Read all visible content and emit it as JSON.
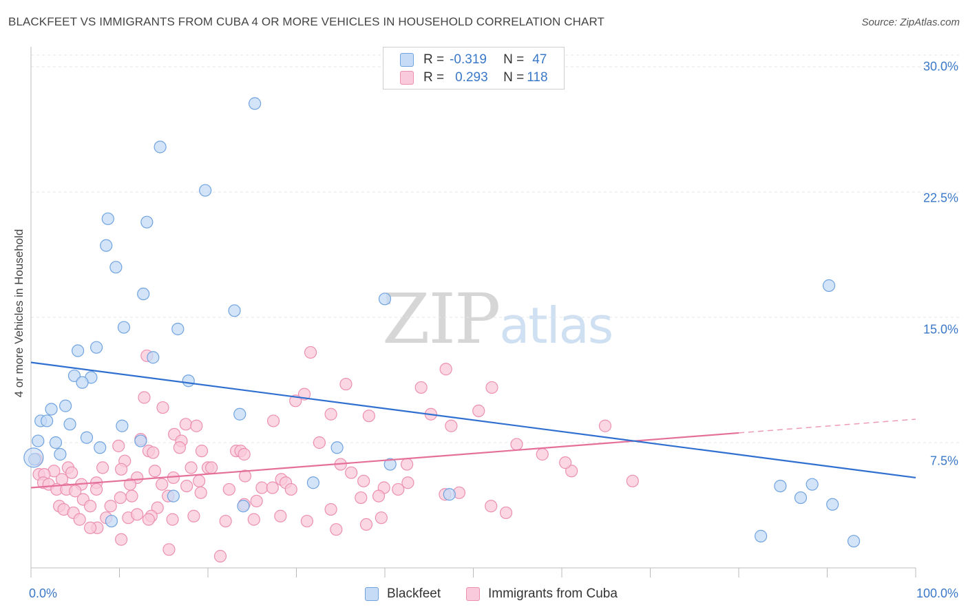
{
  "title": "BLACKFEET VS IMMIGRANTS FROM CUBA 4 OR MORE VEHICLES IN HOUSEHOLD CORRELATION CHART",
  "source": "Source: ZipAtlas.com",
  "watermark": {
    "zip": "ZIP",
    "atlas": "atlas"
  },
  "colors": {
    "blue": "#6fa3e0",
    "blue_fill": "#c6dbf5",
    "pink": "#ec8fb0",
    "pink_fill": "#f9cadb",
    "blue_line": "#2f6fd0",
    "pink_line": "#e4709a"
  },
  "legend": {
    "rows": [
      {
        "r_label": "R =",
        "r_value": "-0.319",
        "n_label": "N =",
        "n_value": "47"
      },
      {
        "r_label": "R =",
        "r_value": "0.293",
        "n_label": "N =",
        "n_value": "118"
      }
    ]
  },
  "chart_data": {
    "type": "scatter",
    "title": "BLACKFEET VS IMMIGRANTS FROM CUBA 4 OR MORE VEHICLES IN HOUSEHOLD CORRELATION CHART",
    "xlabel": "",
    "ylabel": "4 or more Vehicles in Household",
    "xlim": [
      0,
      100
    ],
    "ylim": [
      0,
      30
    ],
    "x_tick_labels": [
      "0.0%",
      "100.0%"
    ],
    "y_ticks": [
      7.5,
      15.0,
      22.5,
      30.0
    ],
    "y_tick_labels": [
      "7.5%",
      "15.0%",
      "22.5%",
      "30.0%"
    ],
    "grid": true,
    "legend_position": "bottom",
    "series": [
      {
        "name": "Blackfeet",
        "color": "#6fa3e0",
        "trend": {
          "x": [
            0,
            100
          ],
          "y": [
            12.3,
            5.4
          ],
          "solid_to": 100
        },
        "points": [
          [
            25.3,
            27.8
          ],
          [
            14.6,
            25.2
          ],
          [
            19.7,
            22.6
          ],
          [
            8.7,
            20.9
          ],
          [
            13.1,
            20.7
          ],
          [
            8.5,
            19.3
          ],
          [
            9.6,
            18.0
          ],
          [
            12.7,
            16.4
          ],
          [
            23.0,
            15.4
          ],
          [
            10.5,
            14.4
          ],
          [
            16.6,
            14.3
          ],
          [
            40.0,
            16.1
          ],
          [
            90.2,
            16.9
          ],
          [
            7.4,
            13.2
          ],
          [
            5.3,
            13.0
          ],
          [
            13.8,
            12.6
          ],
          [
            4.9,
            11.5
          ],
          [
            6.8,
            11.4
          ],
          [
            5.8,
            11.1
          ],
          [
            17.8,
            11.2
          ],
          [
            3.9,
            9.7
          ],
          [
            2.3,
            9.5
          ],
          [
            1.1,
            8.8
          ],
          [
            1.8,
            8.8
          ],
          [
            4.4,
            8.6
          ],
          [
            10.3,
            8.5
          ],
          [
            23.6,
            9.2
          ],
          [
            6.3,
            7.8
          ],
          [
            0.8,
            7.6
          ],
          [
            12.4,
            7.6
          ],
          [
            2.8,
            7.5
          ],
          [
            7.8,
            7.2
          ],
          [
            34.6,
            7.2
          ],
          [
            3.3,
            6.8
          ],
          [
            0.4,
            6.5
          ],
          [
            40.6,
            6.2
          ],
          [
            16.1,
            4.3
          ],
          [
            31.9,
            5.1
          ],
          [
            47.3,
            4.4
          ],
          [
            24.0,
            3.7
          ],
          [
            9.1,
            2.8
          ],
          [
            84.7,
            4.9
          ],
          [
            88.3,
            5.0
          ],
          [
            87.0,
            4.2
          ],
          [
            90.6,
            3.8
          ],
          [
            82.5,
            1.9
          ],
          [
            93.0,
            1.6
          ]
        ]
      },
      {
        "name": "Immigrants from Cuba",
        "color": "#ec8fb0",
        "trend": {
          "x": [
            0,
            100
          ],
          "y": [
            4.8,
            8.9
          ],
          "solid_to": 80
        },
        "points": [
          [
            31.6,
            12.9
          ],
          [
            13.1,
            12.7
          ],
          [
            46.9,
            11.9
          ],
          [
            35.6,
            11.0
          ],
          [
            44.1,
            10.8
          ],
          [
            52.1,
            10.8
          ],
          [
            30.9,
            10.4
          ],
          [
            12.8,
            10.2
          ],
          [
            29.9,
            10.0
          ],
          [
            14.9,
            9.6
          ],
          [
            50.6,
            9.4
          ],
          [
            33.9,
            9.2
          ],
          [
            38.2,
            9.1
          ],
          [
            45.2,
            9.2
          ],
          [
            27.4,
            8.8
          ],
          [
            17.5,
            8.6
          ],
          [
            18.7,
            8.5
          ],
          [
            47.5,
            8.5
          ],
          [
            64.9,
            8.5
          ],
          [
            16.2,
            8.0
          ],
          [
            12.4,
            7.7
          ],
          [
            17.0,
            7.6
          ],
          [
            32.6,
            7.5
          ],
          [
            54.9,
            7.4
          ],
          [
            9.9,
            7.3
          ],
          [
            16.8,
            7.2
          ],
          [
            13.3,
            7.0
          ],
          [
            13.8,
            6.9
          ],
          [
            19.3,
            7.0
          ],
          [
            23.2,
            7.0
          ],
          [
            23.7,
            7.0
          ],
          [
            24.1,
            6.8
          ],
          [
            57.8,
            6.8
          ],
          [
            0.6,
            6.5
          ],
          [
            10.6,
            6.4
          ],
          [
            35.0,
            6.2
          ],
          [
            42.5,
            6.2
          ],
          [
            18.1,
            6.0
          ],
          [
            20.0,
            6.0
          ],
          [
            20.4,
            6.0
          ],
          [
            4.2,
            6.0
          ],
          [
            8.1,
            6.0
          ],
          [
            10.2,
            5.9
          ],
          [
            2.6,
            5.8
          ],
          [
            4.6,
            5.7
          ],
          [
            14.0,
            5.8
          ],
          [
            36.2,
            5.7
          ],
          [
            61.1,
            5.8
          ],
          [
            0.9,
            5.6
          ],
          [
            1.5,
            5.6
          ],
          [
            12.0,
            5.4
          ],
          [
            16.1,
            5.4
          ],
          [
            24.2,
            5.5
          ],
          [
            28.3,
            5.3
          ],
          [
            37.6,
            5.2
          ],
          [
            42.6,
            5.1
          ],
          [
            60.4,
            6.3
          ],
          [
            68.0,
            5.2
          ],
          [
            3.5,
            5.3
          ],
          [
            5.7,
            5.0
          ],
          [
            7.4,
            5.1
          ],
          [
            11.2,
            5.0
          ],
          [
            14.8,
            5.0
          ],
          [
            17.6,
            4.9
          ],
          [
            19.0,
            5.2
          ],
          [
            28.8,
            5.1
          ],
          [
            39.9,
            4.8
          ],
          [
            41.5,
            4.7
          ],
          [
            1.4,
            5.1
          ],
          [
            2.0,
            5.0
          ],
          [
            2.9,
            4.7
          ],
          [
            4.0,
            4.7
          ],
          [
            5.0,
            4.6
          ],
          [
            7.4,
            4.7
          ],
          [
            10.1,
            4.2
          ],
          [
            11.4,
            4.3
          ],
          [
            15.5,
            4.3
          ],
          [
            19.2,
            4.5
          ],
          [
            22.4,
            4.7
          ],
          [
            26.1,
            4.8
          ],
          [
            27.3,
            4.8
          ],
          [
            29.4,
            4.7
          ],
          [
            37.3,
            4.2
          ],
          [
            39.3,
            4.3
          ],
          [
            46.8,
            4.4
          ],
          [
            48.4,
            4.5
          ],
          [
            5.9,
            4.1
          ],
          [
            6.7,
            3.7
          ],
          [
            9.0,
            3.7
          ],
          [
            14.3,
            3.6
          ],
          [
            24.1,
            3.8
          ],
          [
            25.5,
            4.0
          ],
          [
            33.9,
            3.5
          ],
          [
            52.0,
            3.7
          ],
          [
            3.2,
            3.7
          ],
          [
            3.7,
            3.5
          ],
          [
            11.0,
            3.0
          ],
          [
            13.6,
            3.1
          ],
          [
            18.4,
            3.1
          ],
          [
            22.0,
            2.8
          ],
          [
            25.2,
            2.9
          ],
          [
            28.2,
            3.1
          ],
          [
            31.2,
            2.8
          ],
          [
            39.6,
            3.0
          ],
          [
            53.7,
            3.3
          ],
          [
            4.8,
            3.3
          ],
          [
            5.5,
            2.9
          ],
          [
            7.5,
            2.4
          ],
          [
            8.5,
            3.0
          ],
          [
            12.0,
            3.2
          ],
          [
            13.3,
            2.9
          ],
          [
            16.0,
            2.9
          ],
          [
            6.7,
            2.4
          ],
          [
            10.2,
            1.7
          ],
          [
            15.6,
            1.1
          ],
          [
            21.4,
            0.7
          ],
          [
            34.5,
            2.3
          ],
          [
            37.9,
            2.6
          ]
        ]
      }
    ]
  },
  "labels": {
    "ylabel": "4 or more Vehicles in Household",
    "x_min": "0.0%",
    "x_max": "100.0%",
    "y_ticks": [
      "7.5%",
      "15.0%",
      "22.5%",
      "30.0%"
    ],
    "legend_blackfeet": "Blackfeet",
    "legend_cuba": "Immigrants from Cuba"
  }
}
